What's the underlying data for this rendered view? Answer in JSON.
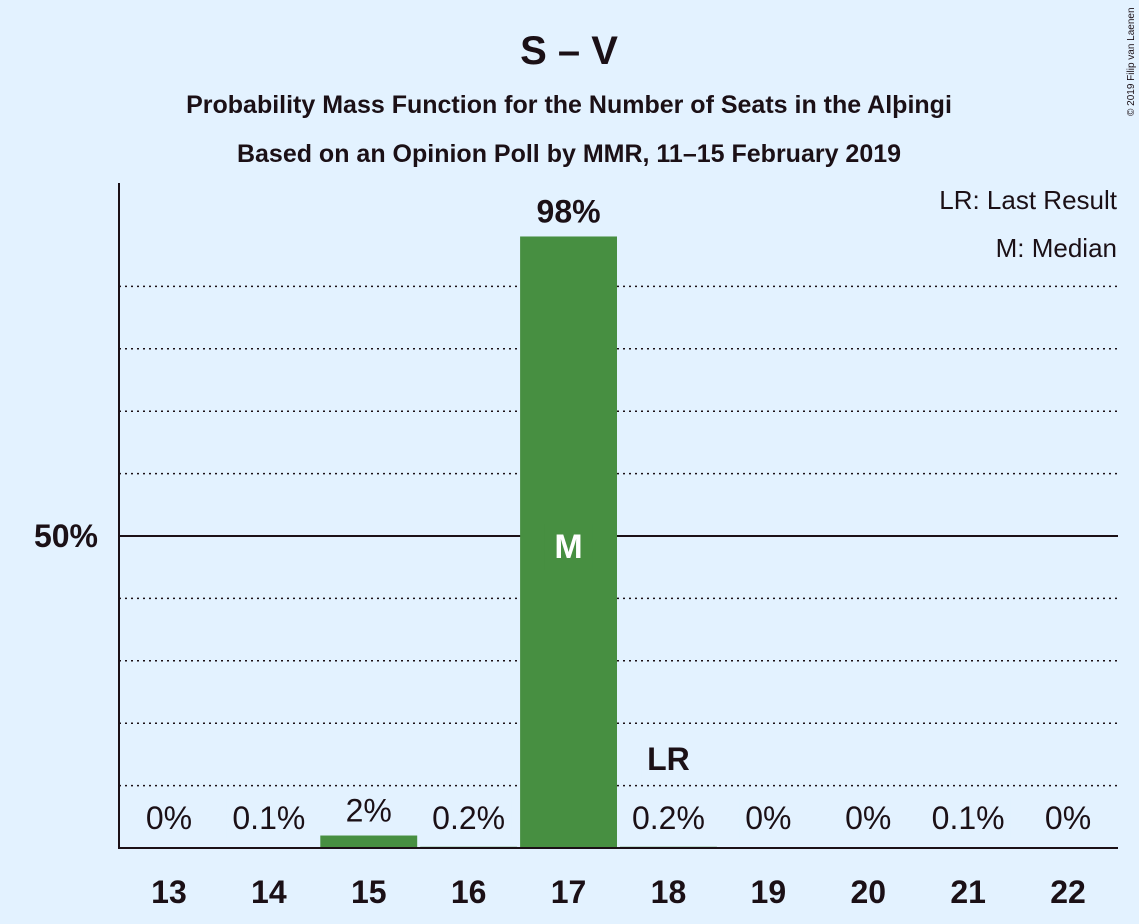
{
  "copyright": "© 2019 Filip van Laenen",
  "chart_data": {
    "type": "bar",
    "title": "S – V",
    "subtitle_1": "Probability Mass Function for the Number of Seats in the Alþingi",
    "subtitle_2": "Based on an Opinion Poll by MMR, 11–15 February 2019",
    "categories": [
      "13",
      "14",
      "15",
      "16",
      "17",
      "18",
      "19",
      "20",
      "21",
      "22"
    ],
    "values": [
      0,
      0.1,
      2,
      0.2,
      98,
      0.2,
      0,
      0,
      0.1,
      0
    ],
    "value_labels": [
      "0%",
      "0.1%",
      "2%",
      "0.2%",
      "98%",
      "0.2%",
      "0%",
      "0%",
      "0.1%",
      "0%"
    ],
    "ylim": [
      0,
      100
    ],
    "y_tick_label": "50%",
    "y_tick_value": 50,
    "gridlines_dotted": [
      10,
      20,
      30,
      40,
      60,
      70,
      80,
      90
    ],
    "bar_color": "#478f41",
    "median_category": "17",
    "median_marker": "M",
    "last_result_category": "18",
    "last_result_marker": "LR",
    "legend": [
      "LR: Last Result",
      "M: Median"
    ],
    "legend_position": "top-right"
  }
}
